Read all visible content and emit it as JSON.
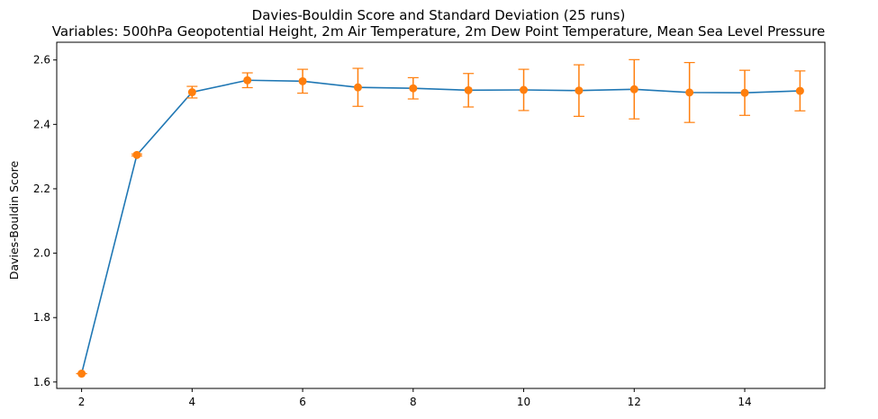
{
  "chart_data": {
    "type": "line",
    "title": "Davies-Bouldin Score and Standard Deviation (25 runs)",
    "subtitle": "Variables: 500hPa Geopotential Height, 2m Air Temperature, 2m Dew Point Temperature, Mean Sea Level Pressure",
    "xlabel": "",
    "ylabel": "Davies-Bouldin Score",
    "xlim": [
      1.55,
      15.45
    ],
    "ylim": [
      1.58,
      2.655
    ],
    "x_ticks": [
      2,
      4,
      6,
      8,
      10,
      12,
      14
    ],
    "y_ticks": [
      1.6,
      1.8,
      2.0,
      2.2,
      2.4,
      2.6
    ],
    "grid": false,
    "series": [
      {
        "x": [
          2,
          3,
          4,
          5,
          6,
          7,
          8,
          9,
          10,
          11,
          12,
          13,
          14,
          15
        ],
        "values": [
          1.626,
          2.305,
          2.5,
          2.537,
          2.534,
          2.515,
          2.512,
          2.506,
          2.507,
          2.505,
          2.509,
          2.499,
          2.498,
          2.504
        ],
        "std": [
          0.0,
          0.003,
          0.018,
          0.023,
          0.037,
          0.059,
          0.033,
          0.052,
          0.064,
          0.08,
          0.092,
          0.093,
          0.07,
          0.062
        ],
        "line_color": "#1f77b4",
        "marker_color": "#ff7f0e"
      }
    ]
  }
}
